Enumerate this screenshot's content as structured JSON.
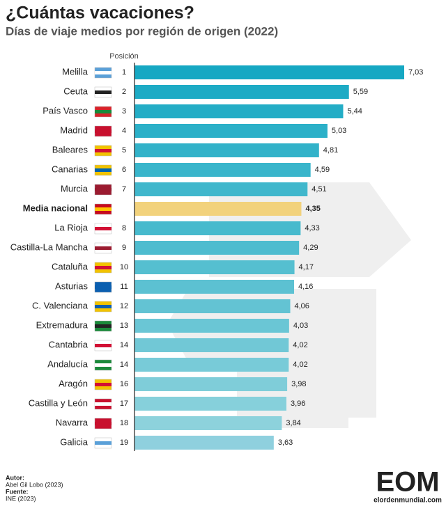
{
  "chart_data": {
    "type": "bar",
    "title": "¿Cuántas vacaciones?",
    "subtitle": "Días de viaje medios por región de origen (2022)",
    "position_header": "Posición",
    "categories": [
      "Melilla",
      "Ceuta",
      "País Vasco",
      "Madrid",
      "Baleares",
      "Canarias",
      "Murcia",
      "Media nacional",
      "La Rioja",
      "Castilla-La Mancha",
      "Cataluña",
      "Asturias",
      "C. Valenciana",
      "Extremadura",
      "Cantabria",
      "Andalucía",
      "Aragón",
      "Castilla y León",
      "Navarra",
      "Galicia"
    ],
    "positions": [
      1,
      2,
      3,
      4,
      5,
      6,
      7,
      null,
      8,
      9,
      10,
      11,
      12,
      13,
      14,
      14,
      16,
      17,
      18,
      19
    ],
    "values": [
      7.03,
      5.59,
      5.44,
      5.03,
      4.81,
      4.59,
      4.51,
      4.35,
      4.33,
      4.29,
      4.17,
      4.16,
      4.06,
      4.03,
      4.02,
      4.02,
      3.98,
      3.96,
      3.84,
      3.63
    ],
    "value_labels": [
      "7,03",
      "5,59",
      "5,44",
      "5,03",
      "4,81",
      "4,59",
      "4,51",
      "4,35",
      "4,33",
      "4,29",
      "4,17",
      "4,16",
      "4,06",
      "4,03",
      "4,02",
      "4,02",
      "3,98",
      "3,96",
      "3,84",
      "3,63"
    ],
    "colors": [
      "#16a8c3",
      "#1dabc5",
      "#24adc6",
      "#2bb0c8",
      "#32b2c9",
      "#39b5cb",
      "#40b7cc",
      "#f2d27c",
      "#47bacd",
      "#4ebccf",
      "#55bfd0",
      "#5cc1d2",
      "#63c3d3",
      "#6ac6d5",
      "#71c8d6",
      "#78cbd8",
      "#7fcdd9",
      "#86d0db",
      "#8dd2dc",
      "#8fd0de"
    ]
  },
  "footer": {
    "author_label": "Autor:",
    "author": "Abel Gil Lobo (2023)",
    "source_label": "Fuente:",
    "source": "INE (2023)"
  },
  "logo": {
    "mark": "EOM",
    "site": "elordenmundial.com"
  }
}
